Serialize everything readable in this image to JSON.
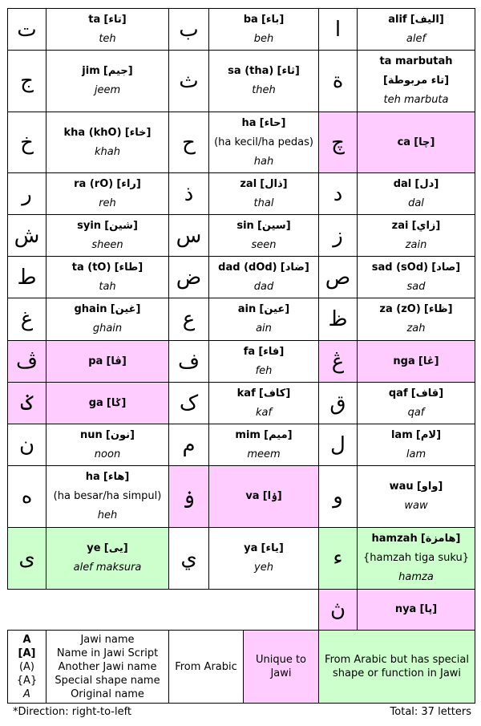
{
  "colors": {
    "unique": "#ffccff",
    "special": "#ccffcc"
  },
  "rows": [
    [
      {
        "l": "ت",
        "n": "ta",
        "a": "تاء",
        "o": "teh"
      },
      {
        "l": "ب",
        "n": "ba",
        "a": "باء",
        "o": "beh"
      },
      {
        "l": "ا",
        "n": "alif",
        "a": "اليف",
        "o": "alef"
      }
    ],
    [
      {
        "l": "ج",
        "n": "jim",
        "a": "جيم",
        "o": "jeem"
      },
      {
        "l": "ث",
        "n": "sa (tha)",
        "a": "ثاء",
        "o": "theh"
      },
      {
        "l": "ة",
        "n": "ta marbutah",
        "a": "تاء مربوطة",
        "o": "teh marbuta",
        "wrap": true
      }
    ],
    [
      {
        "l": "خ",
        "n": "kha (khO)",
        "a": "خاء",
        "o": "khah"
      },
      {
        "l": "ح",
        "n": "ha",
        "a": "حاء",
        "alt": "(ha kecil/ha pedas)",
        "o": "hah",
        "wrap": true
      },
      {
        "l": "چ",
        "n": "ca",
        "a": "چا",
        "type": "unique"
      }
    ],
    [
      {
        "l": "ر",
        "n": "ra (rO)",
        "a": "راء",
        "o": "reh"
      },
      {
        "l": "ذ",
        "n": "zal",
        "a": "ذال",
        "o": "thal"
      },
      {
        "l": "د",
        "n": "dal",
        "a": "دل",
        "o": "dal"
      }
    ],
    [
      {
        "l": "ش",
        "n": "syin",
        "a": "شين",
        "o": "sheen"
      },
      {
        "l": "س",
        "n": "sin",
        "a": "سين",
        "o": "seen"
      },
      {
        "l": "ز",
        "n": "zai",
        "a": "زاي",
        "o": "zain"
      }
    ],
    [
      {
        "l": "ط",
        "n": "ta (tO)",
        "a": "طاء",
        "o": "tah"
      },
      {
        "l": "ض",
        "n": "dad (dOd)",
        "a": "ضاد",
        "o": "dad"
      },
      {
        "l": "ص",
        "n": "sad (sOd)",
        "a": "صاد",
        "o": "sad"
      }
    ],
    [
      {
        "l": "غ",
        "n": "ghain",
        "a": "غين",
        "o": "ghain"
      },
      {
        "l": "ع",
        "n": "ain",
        "a": "عين",
        "o": "ain"
      },
      {
        "l": "ظ",
        "n": "za (zO)",
        "a": "ظاء",
        "o": "zah"
      }
    ],
    [
      {
        "l": "ڤ",
        "n": "pa",
        "a": "ڤا",
        "type": "unique"
      },
      {
        "l": "ف",
        "n": "fa",
        "a": "فاء",
        "o": "feh"
      },
      {
        "l": "ڠ",
        "n": "nga",
        "a": "ڠا",
        "type": "unique"
      }
    ],
    [
      {
        "l": "ݢ",
        "n": "ga",
        "a": "ݢا",
        "type": "unique"
      },
      {
        "l": "ک",
        "n": "kaf",
        "a": "كاف",
        "o": "kaf"
      },
      {
        "l": "ق",
        "n": "qaf",
        "a": "قاف",
        "o": "qaf"
      }
    ],
    [
      {
        "l": "ن",
        "n": "nun",
        "a": "نون",
        "o": "noon"
      },
      {
        "l": "م",
        "n": "mim",
        "a": "ميم",
        "o": "meem"
      },
      {
        "l": "ل",
        "n": "lam",
        "a": "لام",
        "o": "lam"
      }
    ],
    [
      {
        "l": "ه",
        "n": "ha",
        "a": "هاء",
        "alt": "(ha besar/ha simpul)",
        "o": "heh"
      },
      {
        "l": "ۏ",
        "n": "va",
        "a": "ۏا",
        "type": "unique"
      },
      {
        "l": "و",
        "n": "wau",
        "a": "واو",
        "o": "waw"
      }
    ],
    [
      {
        "l": "ى",
        "n": "ye",
        "a": "يى",
        "o": "alef maksura",
        "type": "special"
      },
      {
        "l": "ي",
        "n": "ya",
        "a": "ياء",
        "o": "yeh"
      },
      {
        "l": "ء",
        "n": "hamzah",
        "a": "هامزة",
        "special_shape": "{hamzah tiga suku}",
        "o": "hamza",
        "type": "special"
      }
    ],
    [
      null,
      null,
      {
        "l": "ڽ",
        "n": "nya",
        "a": "ڽا",
        "type": "unique"
      }
    ]
  ],
  "legend": {
    "key": [
      "A",
      "[A]",
      "(A)",
      "{A}",
      "A"
    ],
    "meanings": [
      "Jawi name",
      "Name in Jawi Script",
      "Another Jawi name",
      "Special shape name",
      "Original name"
    ],
    "from_arabic": "From Arabic",
    "unique": "Unique to Jawi",
    "special": "From Arabic but has special shape or function in Jawi"
  },
  "footer": {
    "direction": "*Direction: right-to-left",
    "total": "Total: 37 letters"
  }
}
